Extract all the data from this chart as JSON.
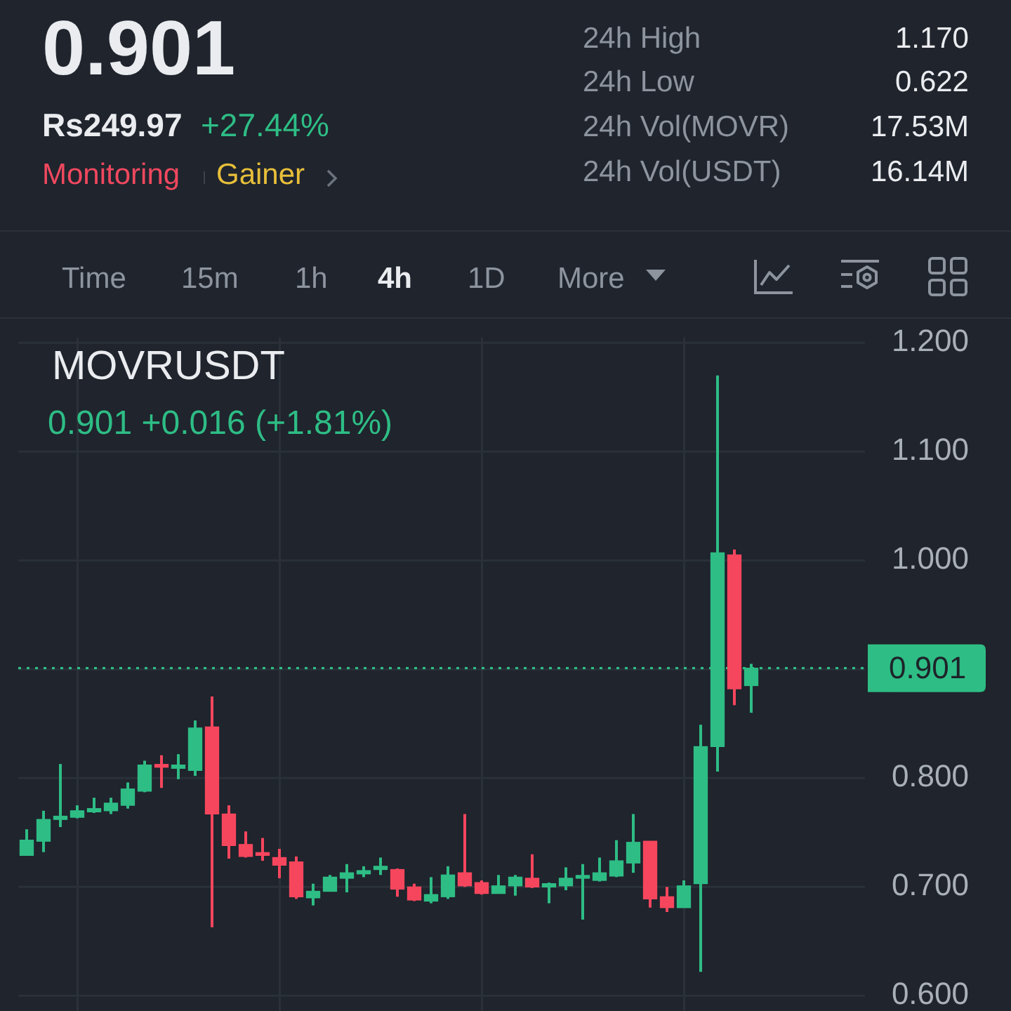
{
  "chart_data": {
    "type": "candlestick",
    "title": "MOVRUSDT",
    "subtitle": "0.901  +0.016 (+1.81%)",
    "categories": [
      null,
      null,
      null,
      null,
      null,
      null,
      null,
      null,
      null,
      null,
      null,
      null,
      null,
      null,
      null,
      null,
      null,
      null,
      null,
      null,
      null,
      null,
      null,
      null,
      null,
      null,
      null,
      null,
      null,
      null,
      null,
      null,
      null,
      null,
      null,
      null,
      null,
      null,
      null,
      null,
      null,
      null,
      null,
      null
    ],
    "ohlc": [
      [
        0.729,
        0.753,
        0.729,
        0.743
      ],
      [
        0.742,
        0.77,
        0.732,
        0.762
      ],
      [
        0.762,
        0.813,
        0.755,
        0.765
      ],
      [
        0.764,
        0.775,
        0.763,
        0.77
      ],
      [
        0.769,
        0.782,
        0.768,
        0.772
      ],
      [
        0.77,
        0.782,
        0.767,
        0.777
      ],
      [
        0.775,
        0.796,
        0.772,
        0.79
      ],
      [
        0.788,
        0.816,
        0.787,
        0.812
      ],
      [
        0.812,
        0.821,
        0.791,
        0.81
      ],
      [
        0.809,
        0.822,
        0.799,
        0.812
      ],
      [
        0.807,
        0.853,
        0.802,
        0.846
      ],
      [
        0.847,
        0.875,
        0.663,
        0.767
      ],
      [
        0.767,
        0.775,
        0.726,
        0.738
      ],
      [
        0.739,
        0.751,
        0.727,
        0.728
      ],
      [
        0.731,
        0.745,
        0.724,
        0.729
      ],
      [
        0.727,
        0.735,
        0.708,
        0.72
      ],
      [
        0.723,
        0.728,
        0.689,
        0.691
      ],
      [
        0.69,
        0.703,
        0.683,
        0.696
      ],
      [
        0.696,
        0.711,
        0.696,
        0.709
      ],
      [
        0.708,
        0.721,
        0.695,
        0.713
      ],
      [
        0.712,
        0.719,
        0.709,
        0.715
      ],
      [
        0.716,
        0.727,
        0.711,
        0.719
      ],
      [
        0.716,
        0.717,
        0.691,
        0.698
      ],
      [
        0.7,
        0.703,
        0.687,
        0.688
      ],
      [
        0.687,
        0.709,
        0.685,
        0.693
      ],
      [
        0.691,
        0.719,
        0.689,
        0.711
      ],
      [
        0.713,
        0.767,
        0.7,
        0.701
      ],
      [
        0.704,
        0.706,
        0.693,
        0.694
      ],
      [
        0.694,
        0.711,
        0.694,
        0.701
      ],
      [
        0.701,
        0.711,
        0.692,
        0.709
      ],
      [
        0.708,
        0.73,
        0.699,
        0.7
      ],
      [
        0.7,
        0.704,
        0.685,
        0.703
      ],
      [
        0.701,
        0.718,
        0.697,
        0.708
      ],
      [
        0.708,
        0.721,
        0.67,
        0.71
      ],
      [
        0.706,
        0.727,
        0.705,
        0.713
      ],
      [
        0.71,
        0.743,
        0.709,
        0.724
      ],
      [
        0.722,
        0.767,
        0.713,
        0.741
      ],
      [
        0.742,
        0.742,
        0.681,
        0.689
      ],
      [
        0.691,
        0.7,
        0.677,
        0.681
      ],
      [
        0.681,
        0.706,
        0.681,
        0.701
      ],
      [
        0.703,
        0.849,
        0.622,
        0.829
      ],
      [
        0.829,
        1.17,
        0.806,
        1.007
      ],
      [
        1.005,
        1.01,
        0.867,
        0.882
      ],
      [
        0.885,
        0.905,
        0.86,
        0.901
      ]
    ],
    "colors": [
      "#2ebd85",
      "#2ebd85",
      "#2ebd85",
      "#2ebd85",
      "#2ebd85",
      "#2ebd85",
      "#2ebd85",
      "#2ebd85",
      "#f6465d",
      "#2ebd85",
      "#2ebd85",
      "#f6465d",
      "#f6465d",
      "#f6465d",
      "#f6465d",
      "#f6465d",
      "#f6465d",
      "#2ebd85",
      "#2ebd85",
      "#2ebd85",
      "#2ebd85",
      "#2ebd85",
      "#f6465d",
      "#f6465d",
      "#2ebd85",
      "#2ebd85",
      "#f6465d",
      "#f6465d",
      "#2ebd85",
      "#2ebd85",
      "#f6465d",
      "#2ebd85",
      "#2ebd85",
      "#2ebd85",
      "#2ebd85",
      "#2ebd85",
      "#2ebd85",
      "#f6465d",
      "#f6465d",
      "#2ebd85",
      "#2ebd85",
      "#2ebd85",
      "#f6465d",
      "#2ebd85"
    ],
    "ylim": [
      0.585,
      1.205
    ],
    "yticks": [
      {
        "value": 0.6,
        "label": "0.600"
      },
      {
        "value": 0.7,
        "label": "0.700"
      },
      {
        "value": 0.8,
        "label": "0.800"
      },
      {
        "value": 0.9,
        "label": null
      },
      {
        "value": 1.0,
        "label": "1.000"
      },
      {
        "value": 1.1,
        "label": "1.100"
      },
      {
        "value": 1.2,
        "label": "1.200"
      }
    ],
    "ref_lines": [
      {
        "axis": "y",
        "value": 0.901,
        "label": "0.901",
        "color": "#2ebd85",
        "line_style": "dotted"
      }
    ],
    "grid": true,
    "tick_labels": "y",
    "annotations": [
      "0.901",
      "Rs249.97",
      "+27.44%",
      "Monitoring",
      "Gainer",
      "24h High",
      "1.170",
      "24h Low",
      "0.622",
      "24h Vol(MOVR)",
      "17.53M",
      "24h Vol(USDT)",
      "16.14M",
      "Time",
      "15m",
      "1h",
      "4h",
      "1D",
      "More"
    ]
  }
}
